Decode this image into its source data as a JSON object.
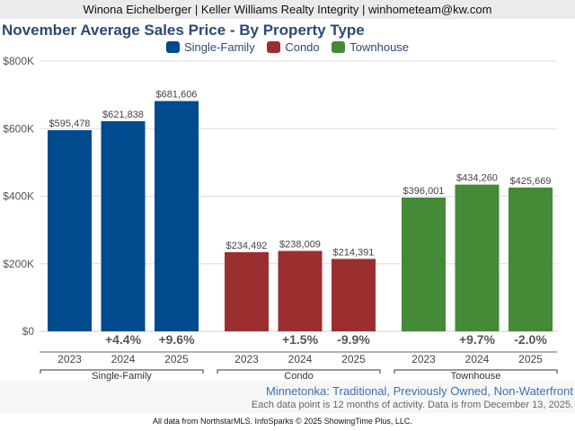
{
  "header": {
    "text": "Winona Eichelberger | Keller Williams Realty Integrity | winhometeam@kw.com"
  },
  "chart_data": {
    "type": "bar",
    "title": "November Average Sales Price - By Property Type",
    "xlabel": "",
    "ylabel": "",
    "ylim": [
      0,
      800000
    ],
    "yticks": [
      0,
      200000,
      400000,
      600000,
      800000
    ],
    "ytick_labels": [
      "$0",
      "$200K",
      "$400K",
      "$600K",
      "$800K"
    ],
    "grid": true,
    "legend_position": "top-center",
    "legend": [
      "Single-Family",
      "Condo",
      "Townhouse"
    ],
    "categories": [
      "2023",
      "2024",
      "2025"
    ],
    "groups": [
      {
        "name": "Single-Family",
        "color": "#004b8d",
        "values": [
          595478,
          621838,
          681606
        ],
        "value_labels": [
          "$595,478",
          "$621,838",
          "$681,606"
        ],
        "changes": [
          "",
          "+4.4%",
          "+9.6%"
        ]
      },
      {
        "name": "Condo",
        "color": "#9b2f30",
        "values": [
          234492,
          238009,
          214391
        ],
        "value_labels": [
          "$234,492",
          "$238,009",
          "$214,391"
        ],
        "changes": [
          "",
          "+1.5%",
          "-9.9%"
        ]
      },
      {
        "name": "Townhouse",
        "color": "#458a37",
        "values": [
          396001,
          434260,
          425669
        ],
        "value_labels": [
          "$396,001",
          "$434,260",
          "$425,669"
        ],
        "changes": [
          "",
          "+9.7%",
          "-2.0%"
        ]
      }
    ]
  },
  "footer": {
    "location": "Minnetonka: Traditional, Previously Owned, Non-Waterfront",
    "note": "Each data point is 12 months of activity. Data is from December 13, 2025.",
    "credit": "All data from NorthstarMLS. InfoSparks © 2025 ShowingTime Plus, LLC."
  }
}
